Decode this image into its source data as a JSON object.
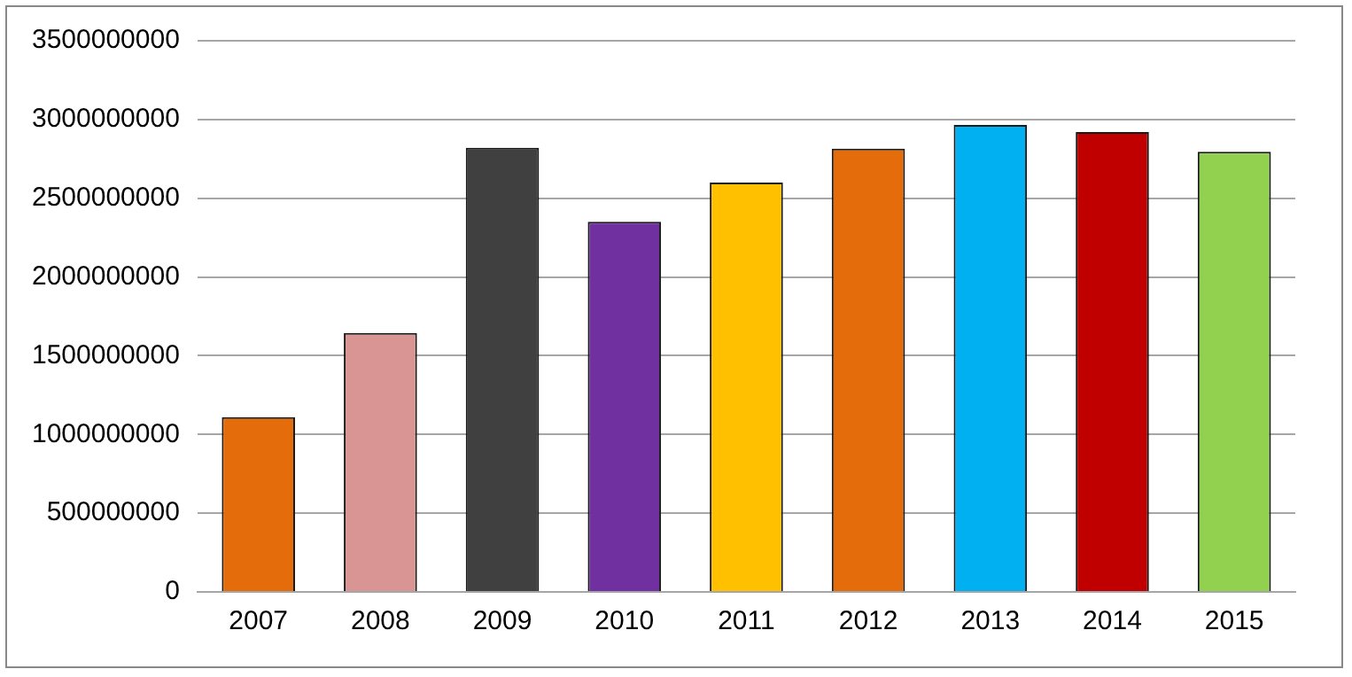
{
  "chart_data": {
    "type": "bar",
    "categories": [
      "2007",
      "2008",
      "2009",
      "2010",
      "2011",
      "2012",
      "2013",
      "2014",
      "2015"
    ],
    "values": [
      1110000000,
      1645000000,
      2820000000,
      2350000000,
      2600000000,
      2815000000,
      2965000000,
      2920000000,
      2795000000
    ],
    "colors": [
      "#e46c0a",
      "#d99594",
      "#404040",
      "#7030a0",
      "#ffc000",
      "#e46c0a",
      "#00b0f0",
      "#c00000",
      "#92d050"
    ],
    "ylim": [
      0,
      3500000000
    ],
    "yticks": [
      0,
      500000000,
      1000000000,
      1500000000,
      2000000000,
      2500000000,
      3000000000,
      3500000000
    ],
    "grid": "y",
    "legend": false
  }
}
